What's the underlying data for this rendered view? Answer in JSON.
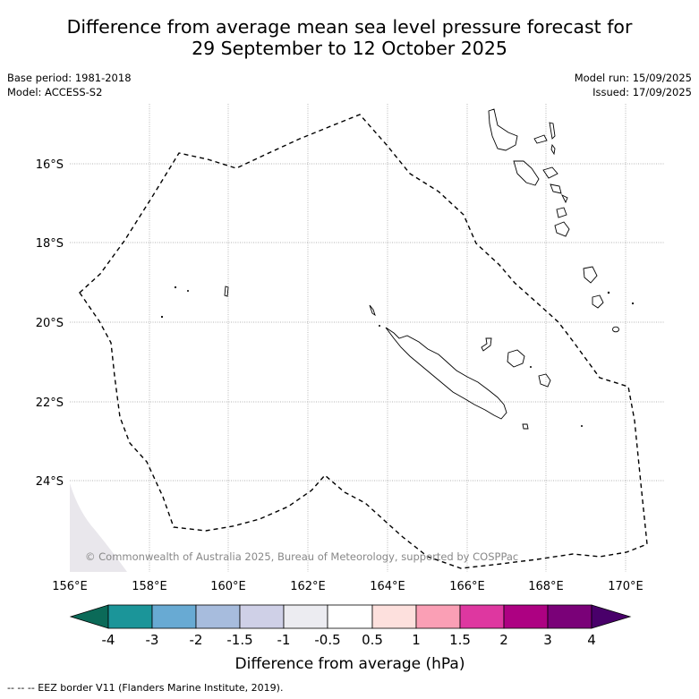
{
  "title_line1": "Difference from average mean sea level pressure forecast for",
  "title_line2": "29 September to 12 October 2025",
  "base_period": "Base period: 1981-2018",
  "model": "Model: ACCESS-S2",
  "model_run": "Model run: 15/09/2025",
  "issued": "Issued: 17/09/2025",
  "copyright": "© Commonwealth of Australia 2025, Bureau of Meteorology, supported by COSPPac",
  "lon_labels": [
    "156°E",
    "158°E",
    "160°E",
    "162°E",
    "164°E",
    "166°E",
    "168°E",
    "170°E"
  ],
  "lat_labels": [
    "16°S",
    "18°S",
    "20°S",
    "22°S",
    "24°S"
  ],
  "colorbar": {
    "label": "Difference from average (hPa)",
    "ticks": [
      "-4",
      "-3",
      "-2",
      "-1.5",
      "-1",
      "-0.5",
      "0.5",
      "1",
      "1.5",
      "2",
      "3",
      "4"
    ],
    "under_color": "#0b6a58",
    "colors": [
      "#1b9599",
      "#68aad3",
      "#a7bcdd",
      "#cfd0e7",
      "#ececf1",
      "#ffffff",
      "#fde0dd",
      "#fa9fb5",
      "#de37a0",
      "#ad0182",
      "#7a0178"
    ],
    "over_color": "#49006a"
  },
  "field_color": "#e9e7ec",
  "footer": "-- -- -- EEZ border V11 (Flanders Marine Institute, 2019)."
}
